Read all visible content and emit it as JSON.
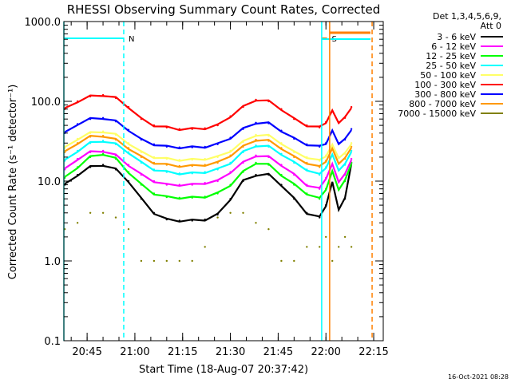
{
  "chart_data": {
    "type": "line",
    "title": "RHESSI Observing Summary Count Rates, Corrected",
    "xlabel": "Start Time (18-Aug-07 20:37:42)",
    "ylabel": "Corrected Count Rate (s⁻¹ detector⁻¹)",
    "yscale": "log",
    "ylim": [
      0.1,
      1000
    ],
    "xlim_minutes": [
      "20:37:42",
      "22:18:00"
    ],
    "x_tick_labels": [
      "20:45",
      "21:00",
      "21:15",
      "21:30",
      "21:45",
      "22:00",
      "22:15"
    ],
    "y_tick_labels": [
      "0.1",
      "1.0",
      "10.0",
      "100.0",
      "1000.0"
    ],
    "legend_header": [
      "Det 1,3,4,5,6,9,",
      "Att 0"
    ],
    "legend_position": "right",
    "footer": "16-Oct-2021 08:28",
    "x": [
      "20:38",
      "20:42",
      "20:46",
      "20:50",
      "20:54",
      "20:58",
      "21:02",
      "21:06",
      "21:10",
      "21:14",
      "21:18",
      "21:22",
      "21:26",
      "21:30",
      "21:34",
      "21:38",
      "21:42",
      "21:46",
      "21:50",
      "21:54",
      "21:58",
      "22:00",
      "22:02",
      "22:04",
      "22:06",
      "22:08"
    ],
    "series": [
      {
        "name": "3 - 6 keV",
        "color": "#000000",
        "values": [
          9,
          12,
          15,
          16,
          14,
          10,
          6,
          4,
          3.3,
          3.2,
          3.2,
          3.3,
          3.8,
          6,
          10,
          12,
          12,
          9,
          6,
          4,
          3.5,
          5,
          9.5,
          4.5,
          6,
          17
        ]
      },
      {
        "name": "6 - 12 keV",
        "color": "#ff00ff",
        "values": [
          14,
          19,
          23,
          24,
          21,
          16,
          12,
          10,
          9,
          9,
          9,
          9.5,
          10,
          13,
          17,
          21,
          20,
          16,
          12,
          9,
          8,
          11,
          16,
          10,
          12,
          19
        ]
      },
      {
        "name": "12 - 25 keV",
        "color": "#00ff00",
        "values": [
          11,
          15,
          20,
          22,
          19,
          13,
          9,
          7,
          6.3,
          6.2,
          6.2,
          6.4,
          7,
          9,
          13,
          17,
          16,
          12,
          9,
          7,
          6,
          8,
          13,
          8,
          10,
          17
        ]
      },
      {
        "name": "25 - 50 keV",
        "color": "#00ffff",
        "values": [
          18,
          24,
          30,
          32,
          29,
          23,
          17,
          14,
          13,
          12.5,
          12.5,
          13,
          14,
          17,
          23,
          28,
          27,
          22,
          17,
          14,
          12,
          15,
          21,
          14,
          16,
          24
        ]
      },
      {
        "name": "50 - 100 keV",
        "color": "#ffff66",
        "values": [
          26,
          34,
          40,
          42,
          38,
          30,
          23,
          20,
          19,
          18.5,
          18.5,
          19,
          20,
          24,
          31,
          38,
          37,
          30,
          23,
          20,
          18,
          21,
          28,
          20,
          22,
          30
        ]
      },
      {
        "name": "100 - 300 keV",
        "color": "#ff0000",
        "values": [
          80,
          100,
          115,
          120,
          110,
          85,
          60,
          50,
          47,
          45,
          45,
          46,
          50,
          65,
          85,
          105,
          100,
          80,
          60,
          50,
          47,
          55,
          75,
          55,
          62,
          85
        ]
      },
      {
        "name": "300 - 800 keV",
        "color": "#0000ff",
        "values": [
          40,
          52,
          60,
          62,
          56,
          44,
          33,
          29,
          27,
          26.5,
          26.5,
          27,
          29,
          35,
          45,
          54,
          53,
          43,
          34,
          29,
          27,
          30,
          42,
          30,
          33,
          45
        ]
      },
      {
        "name": "800 - 7000 keV",
        "color": "#ff9900",
        "values": [
          23,
          30,
          36,
          37,
          33,
          26,
          20,
          17,
          16,
          15.5,
          15.5,
          16,
          17,
          21,
          27,
          33,
          32,
          26,
          20,
          17,
          15,
          18,
          25,
          17,
          19,
          27
        ]
      },
      {
        "name": "7000 - 15000 keV",
        "color": "#808000",
        "values": [
          2.5,
          3,
          4,
          4,
          3.5,
          2.5,
          1,
          1,
          1,
          1,
          1,
          1.5,
          3.5,
          4,
          4,
          3,
          2.5,
          1,
          1,
          1.5,
          1.5,
          2,
          1,
          1.5,
          2,
          1.5
        ]
      }
    ],
    "annotations": [
      {
        "label": "N",
        "color": "#00ffff",
        "start": "20:37:42",
        "end": "20:56:30"
      },
      {
        "label": "S",
        "color": "#ff8000",
        "start": "21:58:40",
        "end": "22:00:20"
      }
    ],
    "vertical_markers": [
      {
        "time": "20:37:42",
        "color": "#00ffff",
        "style": "solid"
      },
      {
        "time": "20:56:30",
        "color": "#00ffff",
        "style": "dashed"
      },
      {
        "time": "21:58:40",
        "color": "#00ffff",
        "style": "solid"
      },
      {
        "time": "22:01:10",
        "color": "#ff8000",
        "style": "solid"
      },
      {
        "time": "22:14:30",
        "color": "#ff8000",
        "style": "dashed"
      }
    ],
    "grid": false
  }
}
